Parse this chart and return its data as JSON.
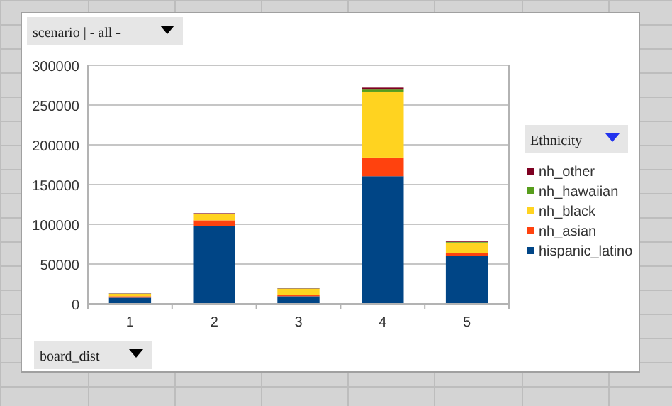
{
  "chart_data": {
    "type": "bar",
    "stacked": true,
    "xlabel": "board_dist",
    "legend_title": "Ethnicity",
    "annotations": [
      "scenario | - all -"
    ],
    "categories": [
      "1",
      "2",
      "3",
      "4",
      "5"
    ],
    "series": [
      {
        "name": "hispanic_latino",
        "color": "#004586",
        "values": [
          7700,
          98000,
          9500,
          160500,
          60700
        ]
      },
      {
        "name": "nh_asian",
        "color": "#ff420e",
        "values": [
          1800,
          7000,
          1200,
          23500,
          3300
        ]
      },
      {
        "name": "nh_black",
        "color": "#ffd320",
        "values": [
          3000,
          8000,
          8300,
          83000,
          13000
        ]
      },
      {
        "name": "nh_hawaiian",
        "color": "#579d1c",
        "values": [
          300,
          500,
          300,
          2500,
          700
        ]
      },
      {
        "name": "nh_other",
        "color": "#7e0021",
        "values": [
          300,
          500,
          300,
          2500,
          700
        ]
      }
    ],
    "ylim": [
      0,
      300000
    ],
    "yticks": [
      0,
      50000,
      100000,
      150000,
      200000,
      250000,
      300000
    ],
    "grid": "y",
    "legend": "right"
  }
}
